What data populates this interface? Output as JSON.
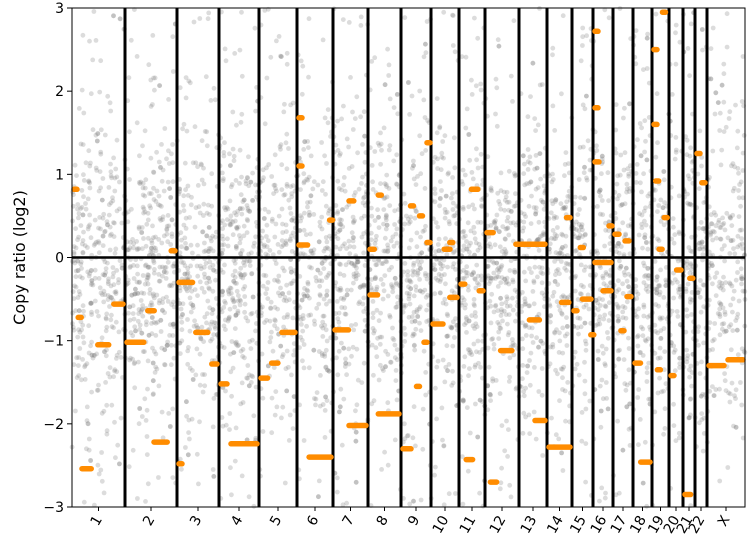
{
  "chart_data": {
    "type": "scatter",
    "title": "",
    "xlabel": "",
    "ylabel": "Copy ratio (log2)",
    "ylim": [
      -3,
      3
    ],
    "yticks": [
      3,
      2,
      1,
      0,
      -1,
      -2,
      -3
    ],
    "ytick_labels": [
      "3",
      "2",
      "1",
      "0",
      "−1",
      "−2",
      "−3"
    ],
    "grid": false,
    "legend": "none",
    "colors": {
      "points": "#808080",
      "segments": "#ff8c00",
      "lines": "#000000"
    },
    "chromosomes": [
      {
        "name": "1",
        "segments": [
          [
            0.0,
            0.09,
            0.82
          ],
          [
            0.15,
            0.4,
            -2.54
          ],
          [
            0.08,
            0.14,
            -0.72
          ],
          [
            0.45,
            0.73,
            -1.05
          ],
          [
            0.75,
            1.0,
            -0.56
          ]
        ]
      },
      {
        "name": "2",
        "segments": [
          [
            0.0,
            0.4,
            -1.02
          ],
          [
            0.4,
            0.6,
            -0.64
          ],
          [
            0.52,
            0.85,
            -2.22
          ],
          [
            0.85,
            1.0,
            0.08
          ]
        ]
      },
      {
        "name": "3",
        "segments": [
          [
            0.0,
            0.42,
            -0.3
          ],
          [
            0.4,
            0.78,
            -0.9
          ],
          [
            0.78,
            1.0,
            -1.28
          ],
          [
            0.0,
            0.08,
            -2.48
          ]
        ]
      },
      {
        "name": "4",
        "segments": [
          [
            0.0,
            0.25,
            -1.52
          ],
          [
            0.25,
            1.0,
            -2.24
          ]
        ]
      },
      {
        "name": "5",
        "segments": [
          [
            0.0,
            0.28,
            -1.45
          ],
          [
            0.28,
            0.55,
            -1.27
          ],
          [
            0.55,
            1.0,
            -0.9
          ]
        ]
      },
      {
        "name": "6",
        "segments": [
          [
            0.0,
            0.08,
            1.68
          ],
          [
            0.0,
            0.08,
            1.1
          ],
          [
            0.0,
            0.35,
            0.15
          ],
          [
            0.28,
            1.0,
            -2.4
          ],
          [
            0.85,
            1.0,
            0.45
          ]
        ]
      },
      {
        "name": "7",
        "segments": [
          [
            0.0,
            0.5,
            -0.87
          ],
          [
            0.4,
            0.65,
            0.68
          ],
          [
            0.4,
            1.0,
            -2.02
          ]
        ]
      },
      {
        "name": "8",
        "segments": [
          [
            0.0,
            0.25,
            0.1
          ],
          [
            0.0,
            0.35,
            -0.45
          ],
          [
            0.25,
            0.4,
            0.75
          ],
          [
            0.25,
            1.0,
            -1.88
          ]
        ]
      },
      {
        "name": "9",
        "segments": [
          [
            0.0,
            0.4,
            -2.3
          ],
          [
            0.25,
            0.45,
            0.62
          ],
          [
            0.45,
            0.65,
            -1.55
          ],
          [
            0.55,
            0.75,
            0.5
          ],
          [
            0.7,
            0.85,
            -1.02
          ],
          [
            0.8,
            0.95,
            0.18
          ],
          [
            0.8,
            1.0,
            1.38
          ]
        ]
      },
      {
        "name": "10",
        "segments": [
          [
            0.0,
            0.5,
            -0.8
          ],
          [
            0.4,
            0.75,
            0.1
          ],
          [
            0.6,
            0.85,
            0.18
          ],
          [
            0.6,
            1.0,
            -0.48
          ]
        ]
      },
      {
        "name": "11",
        "segments": [
          [
            0.0,
            0.3,
            -0.32
          ],
          [
            0.2,
            0.6,
            -2.43
          ],
          [
            0.4,
            0.8,
            0.82
          ],
          [
            0.7,
            1.0,
            -0.4
          ]
        ]
      },
      {
        "name": "12",
        "segments": [
          [
            0.0,
            0.3,
            0.3
          ],
          [
            0.1,
            0.4,
            -2.7
          ],
          [
            0.4,
            0.85,
            -1.12
          ],
          [
            0.85,
            1.0,
            0.16
          ]
        ]
      },
      {
        "name": "13",
        "segments": [
          [
            0.0,
            1.0,
            0.16
          ],
          [
            0.3,
            0.8,
            -0.75
          ],
          [
            0.5,
            1.0,
            -1.96
          ]
        ]
      },
      {
        "name": "14",
        "segments": [
          [
            0.0,
            1.0,
            -2.28
          ],
          [
            0.5,
            0.95,
            -0.54
          ],
          [
            0.7,
            1.0,
            0.48
          ]
        ]
      },
      {
        "name": "15",
        "segments": [
          [
            0.0,
            0.3,
            -0.64
          ],
          [
            0.3,
            0.6,
            0.12
          ],
          [
            0.4,
            1.0,
            -0.5
          ],
          [
            0.8,
            1.0,
            -0.93
          ]
        ]
      },
      {
        "name": "16",
        "segments": [
          [
            0.0,
            0.3,
            2.72
          ],
          [
            0.0,
            0.3,
            1.8
          ],
          [
            0.0,
            0.4,
            1.15
          ],
          [
            0.0,
            1.0,
            -0.06
          ],
          [
            0.4,
            1.0,
            -0.4
          ],
          [
            0.7,
            1.0,
            0.38
          ]
        ]
      },
      {
        "name": "17",
        "segments": [
          [
            0.0,
            0.4,
            0.28
          ],
          [
            0.3,
            0.6,
            -0.88
          ],
          [
            0.5,
            0.9,
            0.2
          ],
          [
            0.6,
            1.0,
            -0.47
          ]
        ]
      },
      {
        "name": "18",
        "segments": [
          [
            0.0,
            0.5,
            -1.27
          ],
          [
            0.3,
            1.0,
            -2.46
          ]
        ]
      },
      {
        "name": "19",
        "segments": [
          [
            0.0,
            0.3,
            2.5
          ],
          [
            0.0,
            0.4,
            1.6
          ],
          [
            0.1,
            0.5,
            0.92
          ],
          [
            0.2,
            0.6,
            -1.35
          ],
          [
            0.3,
            0.7,
            0.1
          ],
          [
            0.5,
            0.9,
            2.95
          ],
          [
            0.6,
            1.0,
            0.48
          ]
        ]
      },
      {
        "name": "20",
        "segments": [
          [
            0.0,
            0.4,
            -1.42
          ],
          [
            0.4,
            1.0,
            -0.15
          ]
        ]
      },
      {
        "name": "21",
        "segments": [
          [
            0.0,
            0.8,
            -2.85
          ],
          [
            0.4,
            0.8,
            -0.25
          ]
        ]
      },
      {
        "name": "22",
        "segments": [
          [
            0.0,
            0.4,
            1.25
          ],
          [
            0.4,
            1.0,
            0.9
          ]
        ]
      },
      {
        "name": "X",
        "segments": [
          [
            0.0,
            0.5,
            -1.3
          ],
          [
            0.5,
            1.0,
            -1.23
          ]
        ]
      }
    ]
  }
}
